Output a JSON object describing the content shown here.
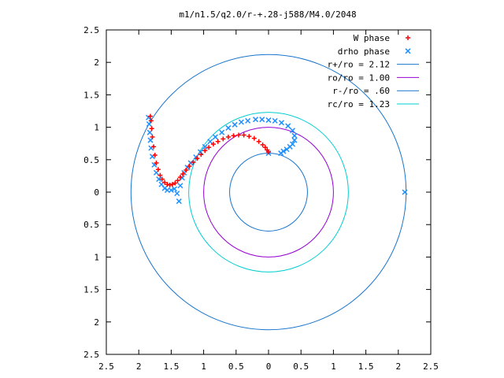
{
  "chart_data": {
    "type": "scatter",
    "title": "m1/n1.5/q2.0/r-+.28-j588/M4.0/2048",
    "xlabel": "",
    "ylabel": "",
    "xlim": [
      2.5,
      -2.5
    ],
    "ylim": [
      -2.5,
      2.5
    ],
    "x_ticks": [
      2.5,
      2,
      1.5,
      1,
      0.5,
      0,
      0.5,
      1,
      1.5,
      2,
      2.5
    ],
    "y_ticks": [
      2.5,
      2,
      1.5,
      1,
      0.5,
      0,
      0.5,
      1,
      1.5,
      2,
      2.5
    ],
    "grid": false,
    "legend_position": "top-right",
    "series": [
      {
        "name": "W phase",
        "marker": "plus",
        "color": "#ff0000",
        "points": [
          [
            1.82,
            1.17
          ],
          [
            1.81,
            1.1
          ],
          [
            1.8,
            0.98
          ],
          [
            1.79,
            0.85
          ],
          [
            1.77,
            0.7
          ],
          [
            1.75,
            0.57
          ],
          [
            1.73,
            0.45
          ],
          [
            1.7,
            0.35
          ],
          [
            1.67,
            0.26
          ],
          [
            1.64,
            0.2
          ],
          [
            1.6,
            0.15
          ],
          [
            1.56,
            0.12
          ],
          [
            1.52,
            0.11
          ],
          [
            1.48,
            0.12
          ],
          [
            1.44,
            0.14
          ],
          [
            1.4,
            0.18
          ],
          [
            1.36,
            0.23
          ],
          [
            1.32,
            0.28
          ],
          [
            1.27,
            0.34
          ],
          [
            1.22,
            0.4
          ],
          [
            1.16,
            0.46
          ],
          [
            1.1,
            0.52
          ],
          [
            1.04,
            0.58
          ],
          [
            0.98,
            0.64
          ],
          [
            0.92,
            0.69
          ],
          [
            0.85,
            0.74
          ],
          [
            0.78,
            0.78
          ],
          [
            0.7,
            0.82
          ],
          [
            0.62,
            0.85
          ],
          [
            0.54,
            0.87
          ],
          [
            0.46,
            0.88
          ],
          [
            0.38,
            0.88
          ],
          [
            0.3,
            0.86
          ],
          [
            0.22,
            0.83
          ],
          [
            0.15,
            0.78
          ],
          [
            0.09,
            0.73
          ],
          [
            0.05,
            0.69
          ],
          [
            0.02,
            0.65
          ],
          [
            0.0,
            0.62
          ]
        ]
      },
      {
        "name": "drho phase",
        "marker": "cross",
        "color": "#1e90ff",
        "points": [
          [
            1.85,
            1.15
          ],
          [
            1.84,
            1.05
          ],
          [
            1.83,
            0.92
          ],
          [
            1.82,
            0.8
          ],
          [
            1.81,
            0.68
          ],
          [
            1.79,
            0.55
          ],
          [
            1.76,
            0.42
          ],
          [
            1.73,
            0.3
          ],
          [
            1.69,
            0.2
          ],
          [
            1.65,
            0.12
          ],
          [
            1.6,
            0.06
          ],
          [
            1.56,
            0.03
          ],
          [
            1.5,
            0.03
          ],
          [
            1.45,
            0.05
          ],
          [
            1.41,
            -0.02
          ],
          [
            1.38,
            -0.14
          ],
          [
            1.36,
            0.1
          ],
          [
            1.33,
            0.22
          ],
          [
            1.3,
            0.3
          ],
          [
            1.25,
            0.38
          ],
          [
            1.2,
            0.45
          ],
          [
            1.12,
            0.54
          ],
          [
            1.05,
            0.62
          ],
          [
            0.98,
            0.7
          ],
          [
            0.9,
            0.78
          ],
          [
            0.82,
            0.85
          ],
          [
            0.72,
            0.92
          ],
          [
            0.62,
            0.99
          ],
          [
            0.52,
            1.04
          ],
          [
            0.42,
            1.08
          ],
          [
            0.32,
            1.1
          ],
          [
            0.2,
            1.12
          ],
          [
            0.1,
            1.12
          ],
          [
            0.0,
            1.11
          ],
          [
            -0.1,
            1.1
          ],
          [
            -0.2,
            1.07
          ],
          [
            -0.3,
            1.02
          ],
          [
            -0.37,
            0.95
          ],
          [
            -0.4,
            0.87
          ],
          [
            -0.4,
            0.8
          ],
          [
            -0.37,
            0.74
          ],
          [
            -0.33,
            0.7
          ],
          [
            -0.28,
            0.66
          ],
          [
            -0.23,
            0.63
          ],
          [
            -0.19,
            0.6
          ],
          [
            0.0,
            0.6
          ],
          [
            -2.1,
            0.0
          ]
        ]
      }
    ],
    "circles": [
      {
        "name": "r+/ro = 2.12",
        "radius": 2.12,
        "color": "#1874cd"
      },
      {
        "name": "ro/ro = 1.00",
        "radius": 1.0,
        "color": "#9400d3"
      },
      {
        "name": "r-/ro = .60",
        "radius": 0.6,
        "color": "#1874cd"
      },
      {
        "name": "rc/ro = 1.23",
        "radius": 1.23,
        "color": "#00ced1"
      }
    ]
  }
}
